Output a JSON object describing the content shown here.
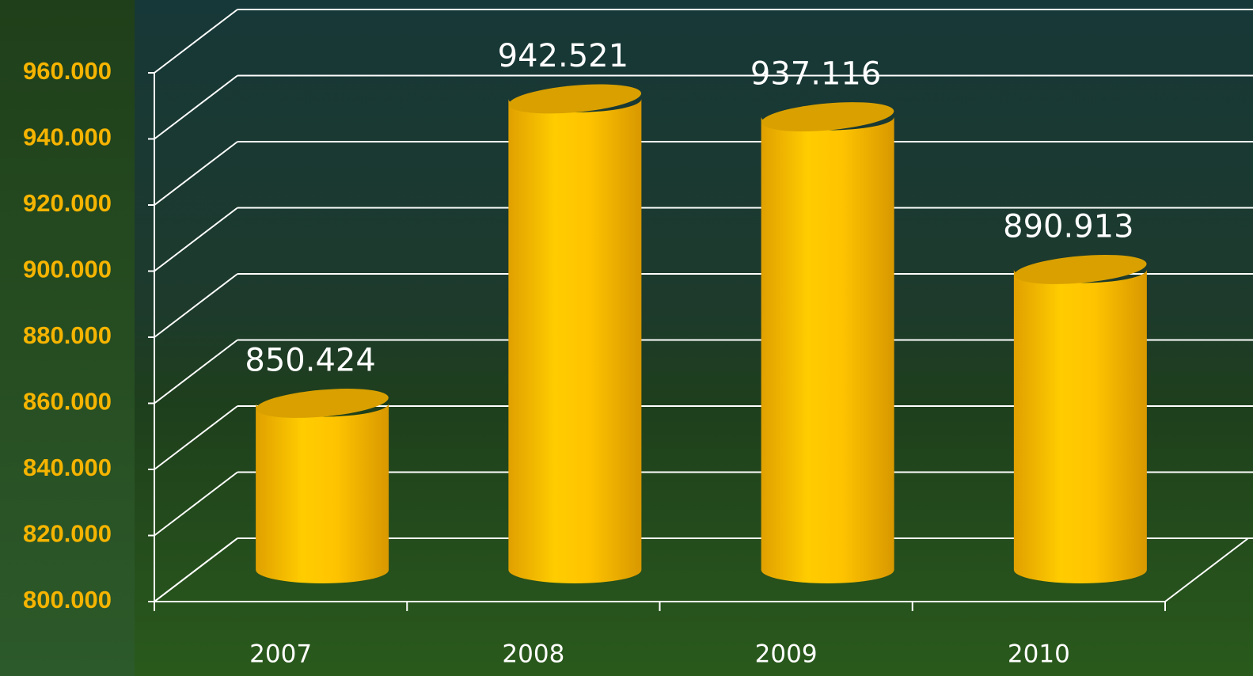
{
  "chart_data": {
    "type": "bar",
    "categories": [
      "2007",
      "2008",
      "2009",
      "2010"
    ],
    "values": [
      850424,
      942521,
      937116,
      890913
    ],
    "value_labels": [
      "850.424",
      "942.521",
      "937.116",
      "890.913"
    ],
    "color": "#f5b800",
    "ylim": [
      800000,
      960000
    ],
    "yticks": [
      {
        "value": 800000,
        "label": "800.000"
      },
      {
        "value": 820000,
        "label": "820.000"
      },
      {
        "value": 840000,
        "label": "840.000"
      },
      {
        "value": 860000,
        "label": "860.000"
      },
      {
        "value": 880000,
        "label": "880.000"
      },
      {
        "value": 900000,
        "label": "900.000"
      },
      {
        "value": 920000,
        "label": "920.000"
      },
      {
        "value": 940000,
        "label": "940.000"
      },
      {
        "value": 960000,
        "label": "960.000"
      }
    ],
    "grid": true
  }
}
